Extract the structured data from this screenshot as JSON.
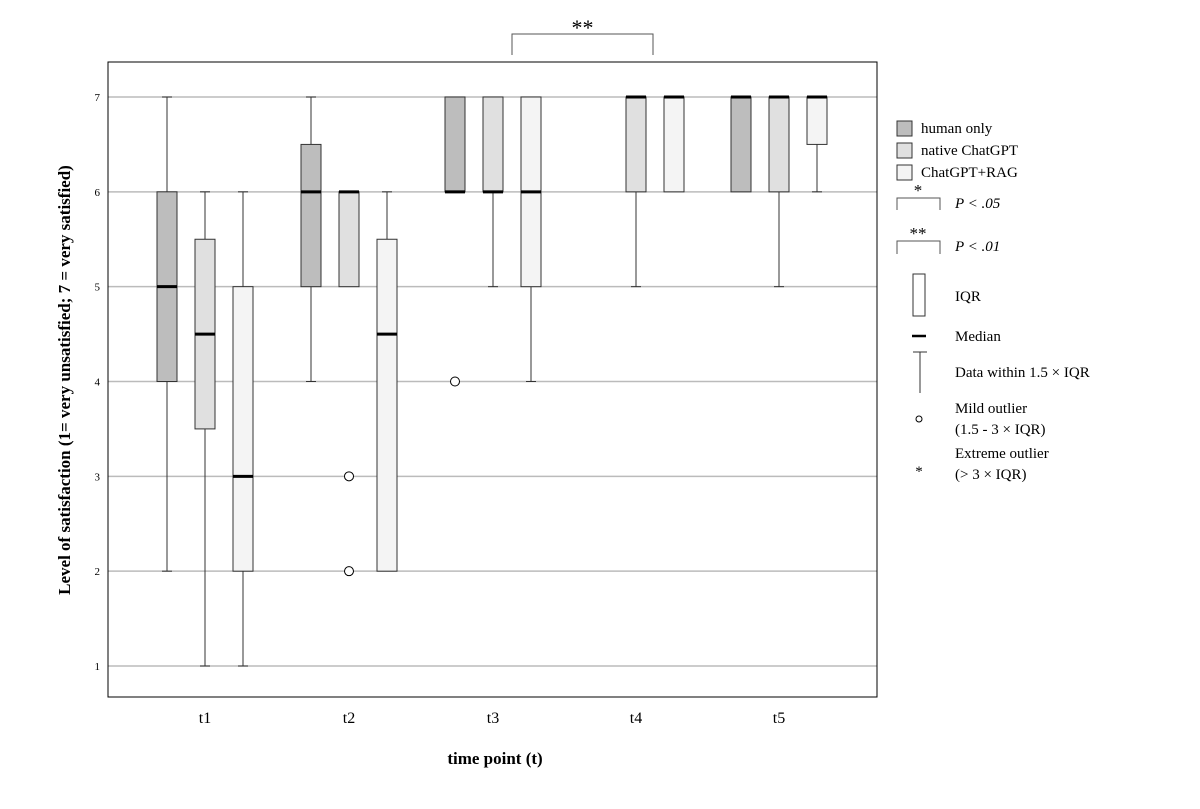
{
  "chart_data": {
    "type": "boxplot",
    "title": "",
    "xlabel": "time point (t)",
    "ylabel": "Level of satisfaction (1= very unsatisfied; 7 = very satisfied)",
    "ylim": [
      0.68,
      7.37
    ],
    "yticks": [
      1,
      2,
      3,
      4,
      5,
      6,
      7
    ],
    "grid": true,
    "categories": [
      "t1",
      "t2",
      "t3",
      "t4",
      "t5"
    ],
    "series": [
      {
        "name": "human only",
        "color": "#bdbdbd",
        "boxes": [
          {
            "min": 2,
            "q1": 4,
            "median": 5,
            "q3": 6,
            "max": 7,
            "outliers": []
          },
          {
            "min": 4,
            "q1": 5,
            "median": 6,
            "q3": 6.5,
            "max": 7,
            "outliers": []
          },
          {
            "min": 6,
            "q1": 6,
            "median": 6,
            "q3": 7,
            "max": 7,
            "outliers": [
              4
            ]
          },
          null,
          {
            "min": 6,
            "q1": 6,
            "median": 7,
            "q3": 7,
            "max": 7,
            "outliers": []
          }
        ]
      },
      {
        "name": "native ChatGPT",
        "color": "#e0e0e0",
        "boxes": [
          {
            "min": 1,
            "q1": 3.5,
            "median": 4.5,
            "q3": 5.5,
            "max": 6,
            "outliers": []
          },
          {
            "min": 5,
            "q1": 5,
            "median": 6,
            "q3": 6,
            "max": 6,
            "outliers": [
              3,
              2
            ]
          },
          {
            "min": 5,
            "q1": 6,
            "median": 6,
            "q3": 7,
            "max": 7,
            "outliers": []
          },
          {
            "min": 5,
            "q1": 6,
            "median": 7,
            "q3": 7,
            "max": 7,
            "outliers": []
          },
          {
            "min": 5,
            "q1": 6,
            "median": 7,
            "q3": 7,
            "max": 7,
            "outliers": []
          }
        ]
      },
      {
        "name": "ChatGPT+RAG",
        "color": "#f4f4f4",
        "boxes": [
          {
            "min": 1,
            "q1": 2,
            "median": 3,
            "q3": 5,
            "max": 6,
            "outliers": []
          },
          {
            "min": 2,
            "q1": 2,
            "median": 4.5,
            "q3": 5.5,
            "max": 6,
            "outliers": []
          },
          {
            "min": 4,
            "q1": 5,
            "median": 6,
            "q3": 7,
            "max": 7,
            "outliers": []
          },
          {
            "min": 6,
            "q1": 6,
            "median": 7,
            "q3": 7,
            "max": 7,
            "outliers": []
          },
          {
            "min": 6,
            "q1": 6.5,
            "median": 7,
            "q3": 7,
            "max": 7,
            "outliers": []
          }
        ]
      }
    ],
    "annotations": [
      {
        "type": "significance",
        "label": "**",
        "from": "t3",
        "to": "t4"
      }
    ],
    "legend": {
      "placement": "right",
      "sig_05_stars": "*",
      "sig_05_label": "P < .05",
      "sig_01_stars": "**",
      "sig_01_label": "P < .01",
      "iqr_label": "IQR",
      "median_label": "Median",
      "whisker_label": "Data within 1.5 × IQR",
      "mild_label_1": "Mild outlier",
      "mild_label_2": "(1.5 - 3 × IQR)",
      "extreme_symbol": "*",
      "extreme_label_1": "Extreme outlier",
      "extreme_label_2": "(> 3 × IQR)"
    }
  }
}
